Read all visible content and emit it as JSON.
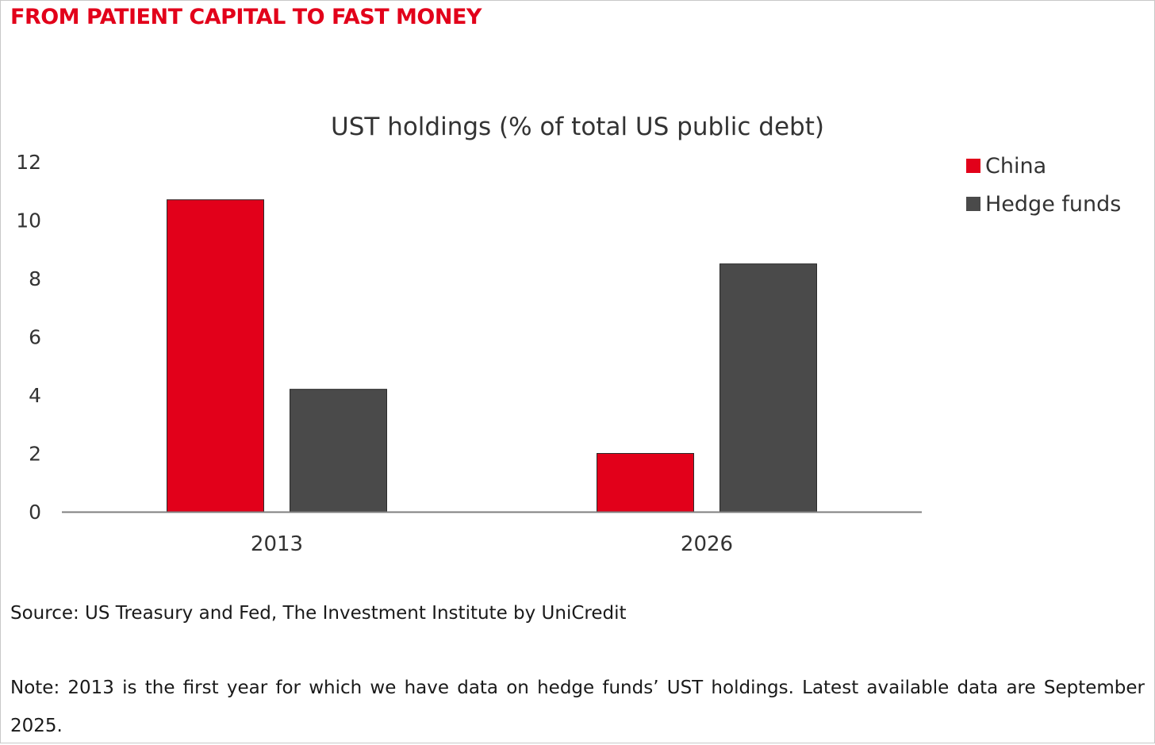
{
  "headline": "FROM PATIENT CAPITAL TO FAST MONEY",
  "chart_data": {
    "type": "bar",
    "title": "UST holdings (% of total US public debt)",
    "categories": [
      "2013",
      "2026"
    ],
    "series": [
      {
        "name": "China",
        "values": [
          10.7,
          2.0
        ],
        "color": "#e2001a"
      },
      {
        "name": "Hedge funds",
        "values": [
          4.2,
          8.5
        ],
        "color": "#4a4a4a"
      }
    ],
    "ylim": [
      0,
      12
    ],
    "yticks": [
      "0",
      "2",
      "4",
      "6",
      "8",
      "10",
      "12"
    ],
    "xlabel": "",
    "ylabel": "",
    "grid": false,
    "legend_position": "top-right"
  },
  "source": "Source: US Treasury and Fed, The Investment Institute by UniCredit",
  "note": "Note: 2013 is the first year for which we have data on hedge funds’ UST holdings. Latest available data are September 2025."
}
